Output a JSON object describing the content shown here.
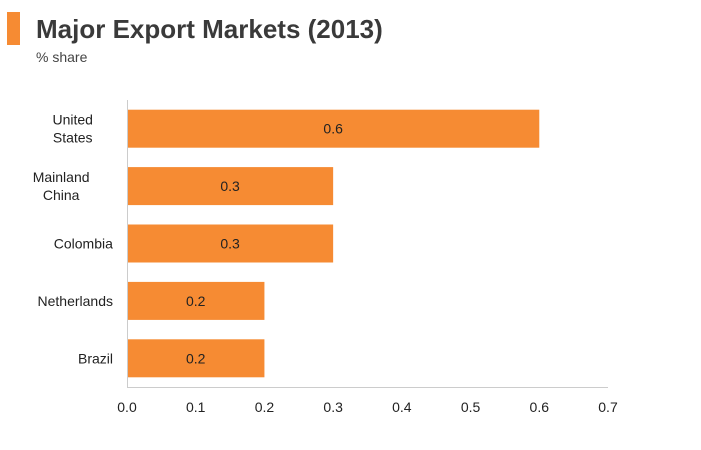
{
  "header": {
    "title": "Major Export Markets (2013)",
    "subtitle": "% share"
  },
  "colors": {
    "accent": "#F68B33",
    "bar": "#F68B33",
    "axis": "#cccccc"
  },
  "chart_data": {
    "type": "bar",
    "orientation": "horizontal",
    "title": "Major Export Markets (2013)",
    "subtitle": "% share",
    "categories": [
      [
        "United",
        "States"
      ],
      [
        "Mainland",
        "China"
      ],
      [
        "Colombia"
      ],
      [
        "Netherlands"
      ],
      [
        "Brazil"
      ]
    ],
    "values": [
      0.6,
      0.3,
      0.3,
      0.2,
      0.2
    ],
    "data_labels": [
      "0.6",
      "0.3",
      "0.3",
      "0.2",
      "0.2"
    ],
    "xlim": [
      0,
      0.7
    ],
    "xticks": [
      "0.0",
      "0.1",
      "0.2",
      "0.3",
      "0.4",
      "0.5",
      "0.6",
      "0.7"
    ],
    "xlabel": "",
    "ylabel": "",
    "grid": false,
    "legend": "none"
  }
}
